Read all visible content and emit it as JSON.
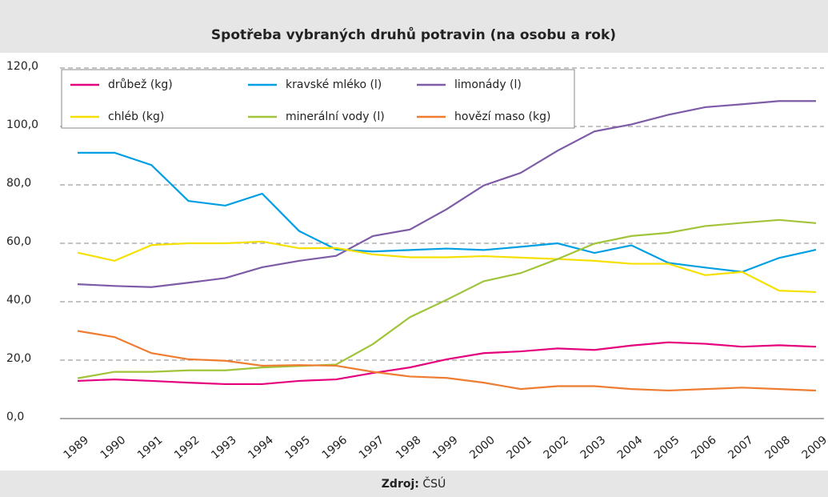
{
  "chart_data": {
    "type": "line",
    "title": "Spotřeba vybraných druhů potravin (na osobu a rok)",
    "source": {
      "label": "Zdroj:",
      "text": "ČSÚ"
    },
    "categories": [
      "1989",
      "1990",
      "1991",
      "1992",
      "1993",
      "1994",
      "1995",
      "1996",
      "1997",
      "1998",
      "1999",
      "2000",
      "2001",
      "2002",
      "2003",
      "2004",
      "2005",
      "2006",
      "2007",
      "2008",
      "2009"
    ],
    "series": [
      {
        "name": "drůbež (kg)",
        "color": "#e5007d",
        "values": [
          12.9,
          13.4,
          12.9,
          12.3,
          11.8,
          11.8,
          12.9,
          13.4,
          15.6,
          17.5,
          20.3,
          22.4,
          23,
          24,
          23.5,
          25,
          26.1,
          25.6,
          24.6,
          25.1,
          24.6
        ]
      },
      {
        "name": "kravské mléko (l)",
        "color": "#009fe3",
        "values": [
          91,
          91,
          86.8,
          74.5,
          72.9,
          77,
          64.2,
          57.9,
          57.2,
          57.7,
          58.2,
          57.7,
          58.8,
          60,
          56.7,
          59.3,
          53.3,
          51.7,
          50.2,
          55,
          57.8
        ]
      },
      {
        "name": "limonády (l)",
        "color": "#7d5ba6",
        "values": [
          46,
          45.4,
          45,
          46.5,
          48.1,
          51.8,
          54,
          55.7,
          62.5,
          64.7,
          71.7,
          79.8,
          84.1,
          91.7,
          98.3,
          100.7,
          104,
          106.6,
          107.6,
          108.7,
          108.7
        ]
      },
      {
        "name": "chléb (kg)",
        "color": "#f5e000",
        "values": [
          56.8,
          54,
          59.4,
          60,
          60,
          60.6,
          58.3,
          58.4,
          56.2,
          55.2,
          55.2,
          55.6,
          55.1,
          54.6,
          54,
          53,
          53,
          49.1,
          50.2,
          43.8,
          43.3
        ]
      },
      {
        "name": "minerální vody (l)",
        "color": "#a1c43a",
        "values": [
          13.8,
          16,
          16,
          16.5,
          16.5,
          17.5,
          18,
          18.5,
          25.5,
          34.7,
          40.7,
          47,
          49.8,
          54.6,
          59.9,
          62.5,
          63.6,
          65.9,
          67,
          68,
          66.9
        ]
      },
      {
        "name": "hovězí maso (kg)",
        "color": "#ee7c31",
        "values": [
          30,
          27.9,
          22.4,
          20.3,
          19.8,
          18.1,
          18.3,
          18.1,
          16,
          14.4,
          13.9,
          12.3,
          10.1,
          11.1,
          11.1,
          10.1,
          9.6,
          10.1,
          10.6,
          10.1,
          9.6
        ]
      }
    ],
    "ylim": [
      0,
      120
    ],
    "yticks": [
      {
        "value": 0,
        "label": "0,0"
      },
      {
        "value": 20,
        "label": "20,0"
      },
      {
        "value": 40,
        "label": "40,0"
      },
      {
        "value": 60,
        "label": "60,0"
      },
      {
        "value": 80,
        "label": "80,0"
      },
      {
        "value": 100,
        "label": "100,0"
      },
      {
        "value": 120,
        "label": "120,0"
      }
    ],
    "grid": true
  }
}
